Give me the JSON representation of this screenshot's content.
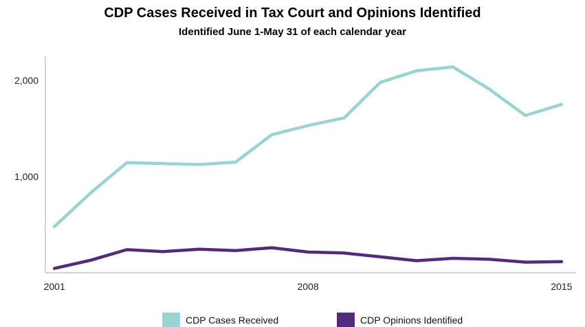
{
  "chart_data": {
    "type": "line",
    "title": "CDP Cases Received in Tax Court and Opinions Identified",
    "subtitle": "Identified June 1-May 31 of each calendar year",
    "x": [
      2001,
      2002,
      2003,
      2004,
      2005,
      2006,
      2007,
      2008,
      2009,
      2010,
      2011,
      2012,
      2013,
      2014,
      2015
    ],
    "xticks": [
      "2001",
      "2008",
      "2015"
    ],
    "yticks": [
      "1,000",
      "2,000"
    ],
    "ylim": [
      0,
      2250
    ],
    "xlim": [
      2000.75,
      2015.4
    ],
    "series": [
      {
        "name": "CDP Cases Received",
        "color": "#99d3d3",
        "values": [
          480,
          830,
          1145,
          1135,
          1125,
          1150,
          1435,
          1530,
          1610,
          1980,
          2100,
          2140,
          1910,
          1635,
          1750
        ]
      },
      {
        "name": "CDP Opinions Identified",
        "color": "#532a7c",
        "values": [
          45,
          130,
          240,
          220,
          245,
          230,
          260,
          215,
          205,
          165,
          125,
          150,
          140,
          110,
          115
        ]
      }
    ],
    "legend_position": "bottom-center",
    "grid": false
  }
}
